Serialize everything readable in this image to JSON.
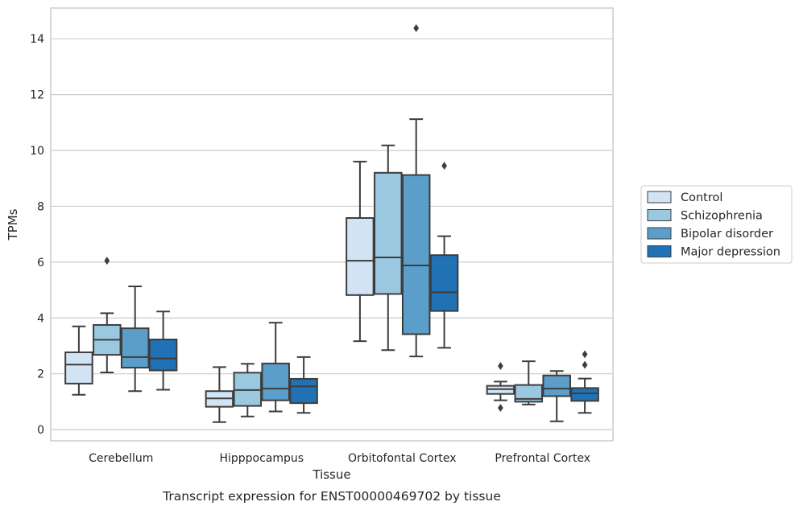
{
  "caption": "Transcript expression for ENST00000469702 by tissue",
  "chart_data": {
    "type": "boxplot",
    "xlabel": "Tissue",
    "ylabel": "TPMs",
    "ylim": [
      -0.4,
      15.1
    ],
    "yticks": [
      0,
      2,
      4,
      6,
      8,
      10,
      12,
      14
    ],
    "grid": "horizontal",
    "legend_position": "right",
    "categories": [
      "Cerebellum",
      "Hipppocampus",
      "Orbitofontal Cortex",
      "Prefrontal Cortex"
    ],
    "series": [
      {
        "name": "Control",
        "color": "#d2e3f3",
        "boxes": [
          {
            "whisker_low": 1.25,
            "q1": 1.65,
            "median": 2.33,
            "q3": 2.77,
            "whisker_high": 3.7,
            "outliers": []
          },
          {
            "whisker_low": 0.27,
            "q1": 0.82,
            "median": 1.12,
            "q3": 1.38,
            "whisker_high": 2.24,
            "outliers": []
          },
          {
            "whisker_low": 3.17,
            "q1": 4.82,
            "median": 6.05,
            "q3": 7.58,
            "whisker_high": 9.6,
            "outliers": []
          },
          {
            "whisker_low": 1.05,
            "q1": 1.28,
            "median": 1.45,
            "q3": 1.57,
            "whisker_high": 1.72,
            "outliers": [
              2.28,
              0.78
            ]
          }
        ]
      },
      {
        "name": "Schizophrenia",
        "color": "#9ac8e0",
        "boxes": [
          {
            "whisker_low": 2.05,
            "q1": 2.68,
            "median": 3.22,
            "q3": 3.75,
            "whisker_high": 4.17,
            "outliers": [
              6.05
            ]
          },
          {
            "whisker_low": 0.47,
            "q1": 0.85,
            "median": 1.42,
            "q3": 2.04,
            "whisker_high": 2.36,
            "outliers": []
          },
          {
            "whisker_low": 2.85,
            "q1": 4.86,
            "median": 6.17,
            "q3": 9.2,
            "whisker_high": 10.18,
            "outliers": []
          },
          {
            "whisker_low": 0.9,
            "q1": 1.0,
            "median": 1.1,
            "q3": 1.6,
            "whisker_high": 2.45,
            "outliers": []
          }
        ]
      },
      {
        "name": "Bipolar disorder",
        "color": "#5a9ec9",
        "boxes": [
          {
            "whisker_low": 1.38,
            "q1": 2.22,
            "median": 2.6,
            "q3": 3.63,
            "whisker_high": 5.13,
            "outliers": []
          },
          {
            "whisker_low": 0.65,
            "q1": 1.05,
            "median": 1.47,
            "q3": 2.37,
            "whisker_high": 3.83,
            "outliers": []
          },
          {
            "whisker_low": 2.62,
            "q1": 3.42,
            "median": 5.88,
            "q3": 9.12,
            "whisker_high": 11.12,
            "outliers": [
              14.38
            ]
          },
          {
            "whisker_low": 0.3,
            "q1": 1.2,
            "median": 1.47,
            "q3": 1.94,
            "whisker_high": 2.1,
            "outliers": []
          }
        ]
      },
      {
        "name": "Major depression",
        "color": "#2171b5",
        "boxes": [
          {
            "whisker_low": 1.43,
            "q1": 2.12,
            "median": 2.55,
            "q3": 3.23,
            "whisker_high": 4.23,
            "outliers": []
          },
          {
            "whisker_low": 0.6,
            "q1": 0.95,
            "median": 1.55,
            "q3": 1.82,
            "whisker_high": 2.6,
            "outliers": []
          },
          {
            "whisker_low": 2.93,
            "q1": 4.25,
            "median": 4.92,
            "q3": 6.25,
            "whisker_high": 6.93,
            "outliers": [
              9.45
            ]
          },
          {
            "whisker_low": 0.6,
            "q1": 1.03,
            "median": 1.3,
            "q3": 1.49,
            "whisker_high": 1.83,
            "outliers": [
              2.7,
              2.32
            ]
          }
        ]
      }
    ]
  }
}
